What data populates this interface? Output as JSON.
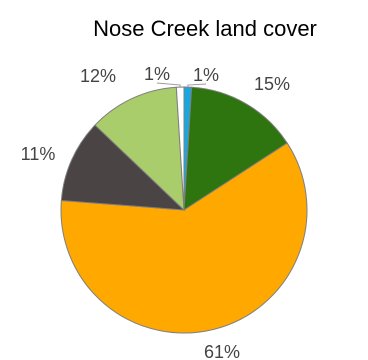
{
  "chart_data": {
    "type": "pie",
    "title": "Nose Creek land cover",
    "slices": [
      {
        "label": "1%",
        "value": 1,
        "color": "#1aa7e0"
      },
      {
        "label": "15%",
        "value": 15,
        "color": "#2e7510"
      },
      {
        "label": "61%",
        "value": 61,
        "color": "#ffa800"
      },
      {
        "label": "11%",
        "value": 11,
        "color": "#4a4444"
      },
      {
        "label": "12%",
        "value": 12,
        "color": "#a9cd6b"
      },
      {
        "label": "1%",
        "value": 1,
        "color": "#ffffff"
      }
    ],
    "start_angle_deg": 0,
    "direction": "clockwise",
    "legend": "none"
  }
}
